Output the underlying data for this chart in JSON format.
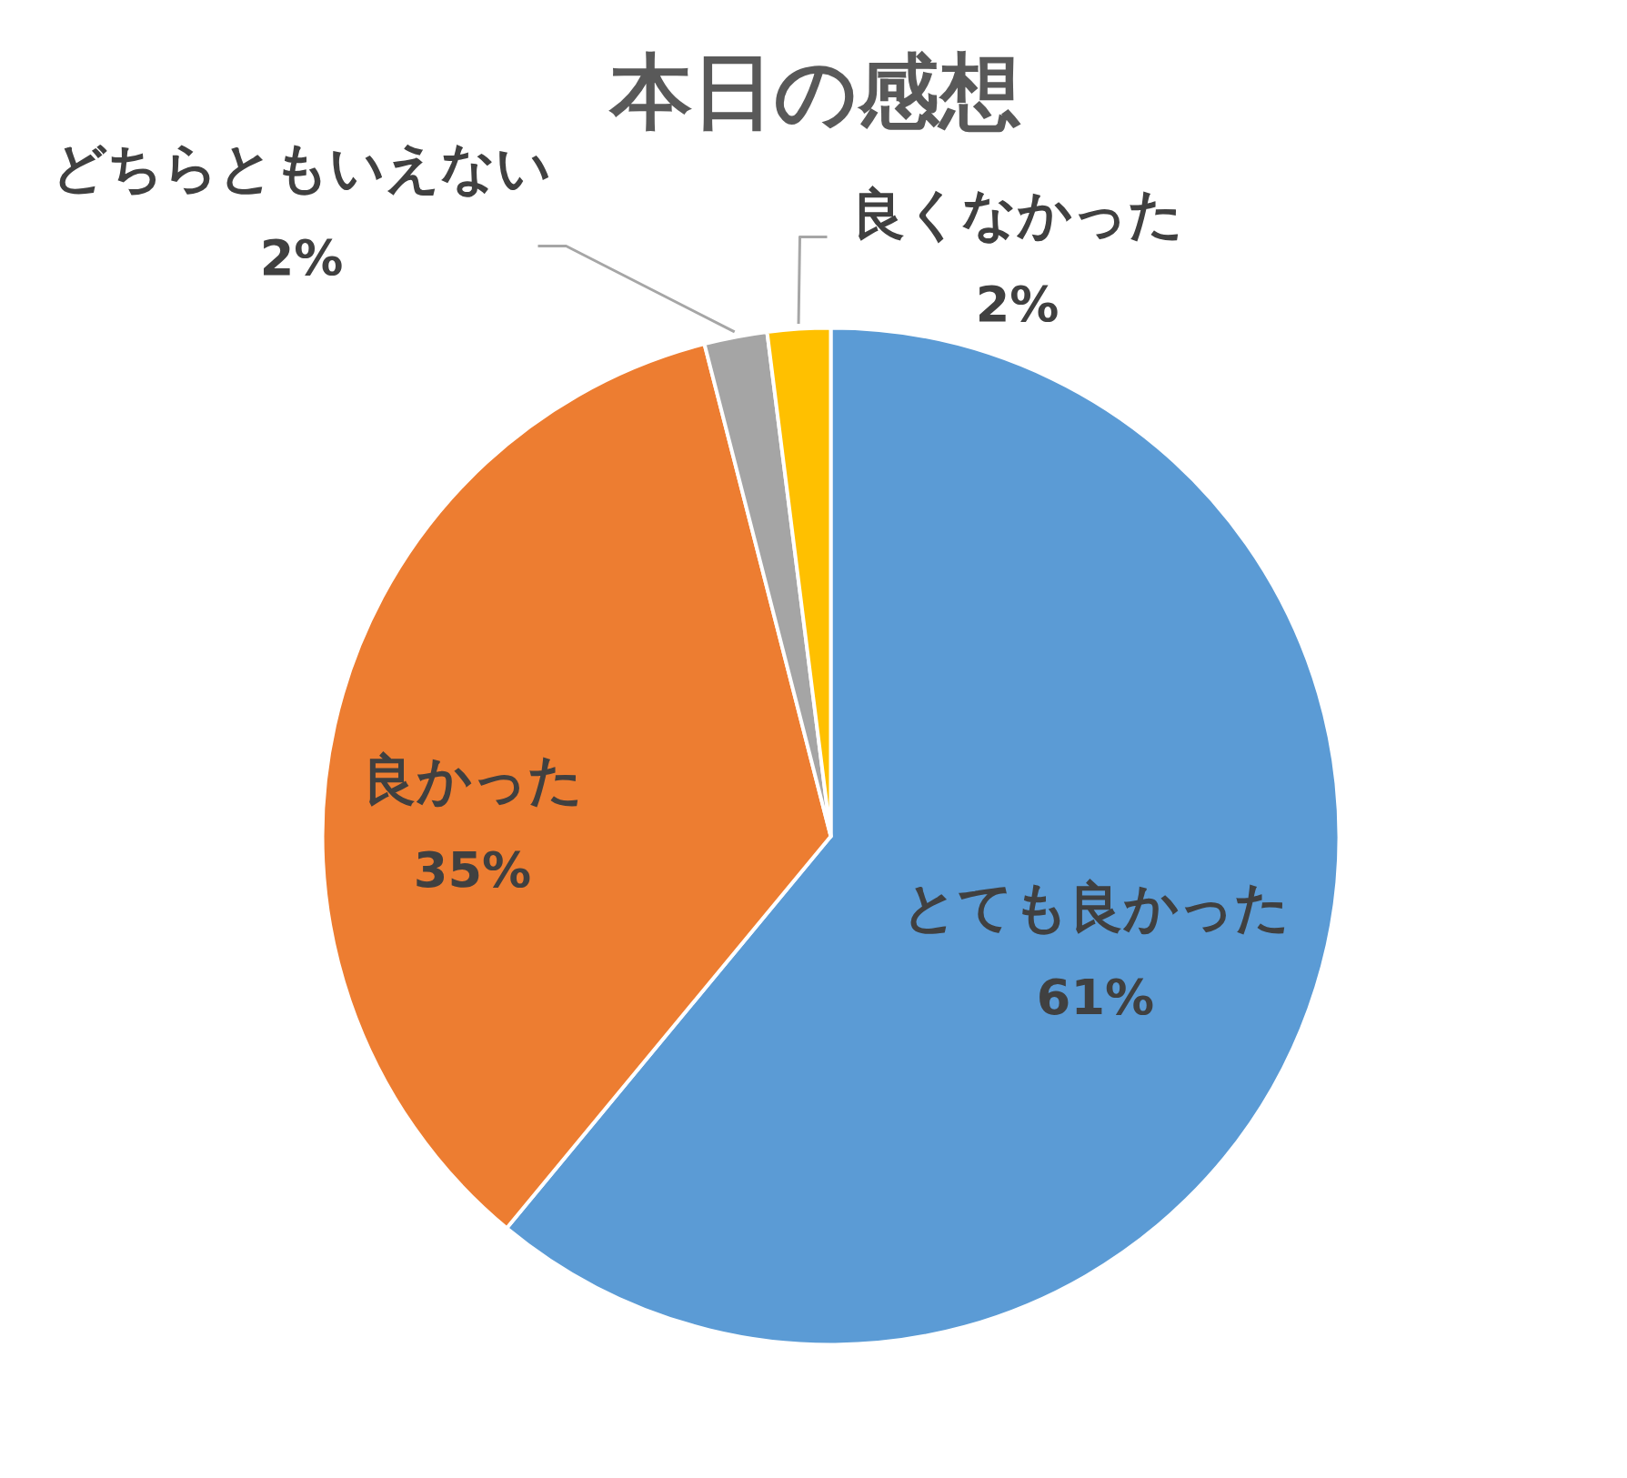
{
  "chart_data": {
    "type": "pie",
    "title": "本日の感想",
    "categories": [
      "とても良かった",
      "良かった",
      "どちらともいえない",
      "良くなかった"
    ],
    "values": [
      61,
      35,
      2,
      2
    ],
    "colors": [
      "#5b9bd5",
      "#ed7d31",
      "#a5a5a5",
      "#ffc000"
    ],
    "value_labels": [
      "61%",
      "35%",
      "2%",
      "2%"
    ]
  }
}
